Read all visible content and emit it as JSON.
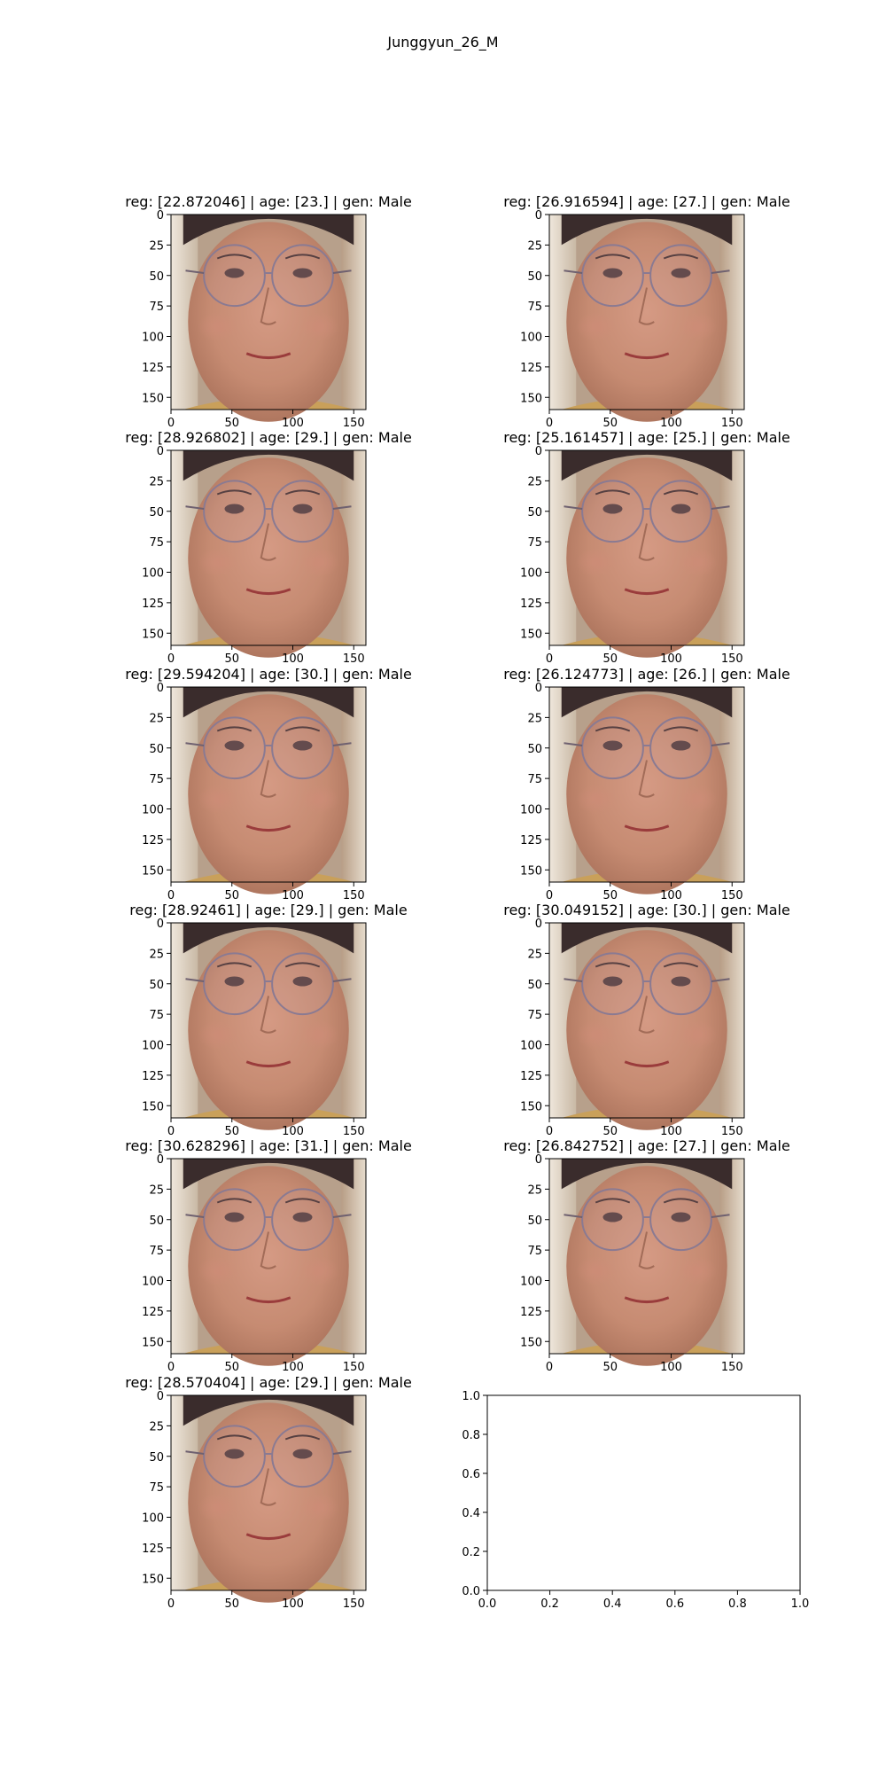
{
  "figure": {
    "title": "Junggyun_26_M"
  },
  "chart_data": {
    "type": "image-grid",
    "title": "Junggyun_26_M",
    "panels": [
      {
        "title": "reg: [22.872046] | age: [23.] | gen: Male",
        "reg": 22.872046,
        "age": 23,
        "gen": "Male",
        "xlim": [
          0,
          160
        ],
        "ylim": [
          160,
          0
        ],
        "xticks": [
          "0",
          "50",
          "100",
          "150"
        ],
        "yticks": [
          "0",
          "25",
          "50",
          "75",
          "100",
          "125",
          "150"
        ]
      },
      {
        "title": "reg: [26.916594] | age: [27.] | gen: Male",
        "reg": 26.916594,
        "age": 27,
        "gen": "Male",
        "xlim": [
          0,
          160
        ],
        "ylim": [
          160,
          0
        ],
        "xticks": [
          "0",
          "50",
          "100",
          "150"
        ],
        "yticks": [
          "0",
          "25",
          "50",
          "75",
          "100",
          "125",
          "150"
        ]
      },
      {
        "title": "reg: [28.926802] | age: [29.] | gen: Male",
        "reg": 28.926802,
        "age": 29,
        "gen": "Male",
        "xlim": [
          0,
          160
        ],
        "ylim": [
          160,
          0
        ],
        "xticks": [
          "0",
          "50",
          "100",
          "150"
        ],
        "yticks": [
          "0",
          "25",
          "50",
          "75",
          "100",
          "125",
          "150"
        ]
      },
      {
        "title": "reg: [25.161457] | age: [25.] | gen: Male",
        "reg": 25.161457,
        "age": 25,
        "gen": "Male",
        "xlim": [
          0,
          160
        ],
        "ylim": [
          160,
          0
        ],
        "xticks": [
          "0",
          "50",
          "100",
          "150"
        ],
        "yticks": [
          "0",
          "25",
          "50",
          "75",
          "100",
          "125",
          "150"
        ]
      },
      {
        "title": "reg: [29.594204] | age: [30.] | gen: Male",
        "reg": 29.594204,
        "age": 30,
        "gen": "Male",
        "xlim": [
          0,
          160
        ],
        "ylim": [
          160,
          0
        ],
        "xticks": [
          "0",
          "50",
          "100",
          "150"
        ],
        "yticks": [
          "0",
          "25",
          "50",
          "75",
          "100",
          "125",
          "150"
        ]
      },
      {
        "title": "reg: [26.124773] | age: [26.] | gen: Male",
        "reg": 26.124773,
        "age": 26,
        "gen": "Male",
        "xlim": [
          0,
          160
        ],
        "ylim": [
          160,
          0
        ],
        "xticks": [
          "0",
          "50",
          "100",
          "150"
        ],
        "yticks": [
          "0",
          "25",
          "50",
          "75",
          "100",
          "125",
          "150"
        ]
      },
      {
        "title": "reg: [28.92461] | age: [29.] | gen: Male",
        "reg": 28.92461,
        "age": 29,
        "gen": "Male",
        "xlim": [
          0,
          160
        ],
        "ylim": [
          160,
          0
        ],
        "xticks": [
          "0",
          "50",
          "100",
          "150"
        ],
        "yticks": [
          "0",
          "25",
          "50",
          "75",
          "100",
          "125",
          "150"
        ]
      },
      {
        "title": "reg: [30.049152] | age: [30.] | gen: Male",
        "reg": 30.049152,
        "age": 30,
        "gen": "Male",
        "xlim": [
          0,
          160
        ],
        "ylim": [
          160,
          0
        ],
        "xticks": [
          "0",
          "50",
          "100",
          "150"
        ],
        "yticks": [
          "0",
          "25",
          "50",
          "75",
          "100",
          "125",
          "150"
        ]
      },
      {
        "title": "reg: [30.628296] | age: [31.] | gen: Male",
        "reg": 30.628296,
        "age": 31,
        "gen": "Male",
        "xlim": [
          0,
          160
        ],
        "ylim": [
          160,
          0
        ],
        "xticks": [
          "0",
          "50",
          "100",
          "150"
        ],
        "yticks": [
          "0",
          "25",
          "50",
          "75",
          "100",
          "125",
          "150"
        ]
      },
      {
        "title": "reg: [26.842752] | age: [27.] | gen: Male",
        "reg": 26.842752,
        "age": 27,
        "gen": "Male",
        "xlim": [
          0,
          160
        ],
        "ylim": [
          160,
          0
        ],
        "xticks": [
          "0",
          "50",
          "100",
          "150"
        ],
        "yticks": [
          "0",
          "25",
          "50",
          "75",
          "100",
          "125",
          "150"
        ]
      },
      {
        "title": "reg: [28.570404] | age: [29.] | gen: Male",
        "reg": 28.570404,
        "age": 29,
        "gen": "Male",
        "xlim": [
          0,
          160
        ],
        "ylim": [
          160,
          0
        ],
        "xticks": [
          "0",
          "50",
          "100",
          "150"
        ],
        "yticks": [
          "0",
          "25",
          "50",
          "75",
          "100",
          "125",
          "150"
        ]
      }
    ],
    "empty_axes": {
      "xlim": [
        0.0,
        1.0
      ],
      "ylim": [
        0.0,
        1.0
      ],
      "xticks": [
        "0.0",
        "0.2",
        "0.4",
        "0.6",
        "0.8",
        "1.0"
      ],
      "yticks": [
        "0.0",
        "0.2",
        "0.4",
        "0.6",
        "0.8",
        "1.0"
      ]
    }
  }
}
